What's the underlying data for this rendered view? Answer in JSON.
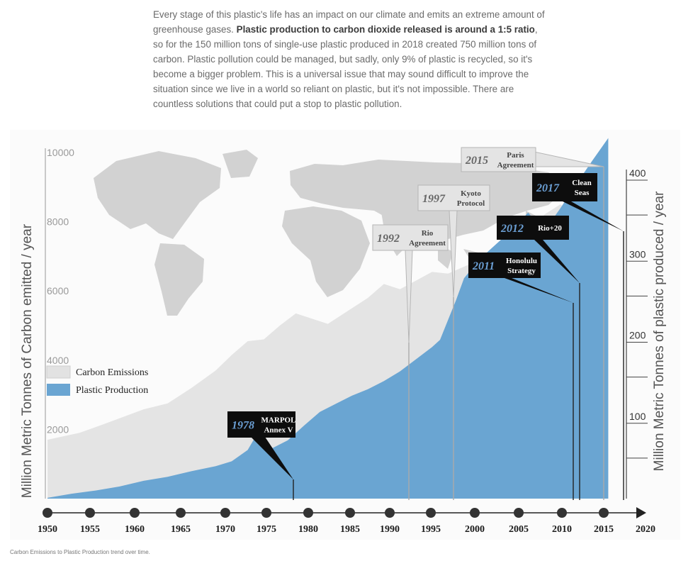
{
  "intro": {
    "p1": "Every stage of this plastic's life has an impact on our climate and emits an extreme amount of greenhouse gases. ",
    "bold": "Plastic production to carbon dioxide released is around a 1:5 ratio",
    "p2": ", so for the 150 million tons of single-use plastic produced in 2018 created 750 million tons of carbon. Plastic pollution could be managed, but sadly, only 9% of plastic is recycled, so it's become a bigger problem. This is a universal issue that may sound difficult to improve the situation since we live in a world so reliant on plastic, but it's not impossible. There are countless solutions that could put a stop to plastic pollution."
  },
  "caption": "Carbon Emissions to Plastic Production trend over time.",
  "colors": {
    "carbon": "#e2e2e2",
    "plastic": "#6aa5d2",
    "map": "#d2d2d2",
    "event_dark": "#0d0d0d",
    "event_light": "#e4e4e4",
    "event_year_dark": "#6b9fd4",
    "event_year_light": "#666666"
  },
  "chart_data": {
    "type": "area",
    "background_image": "world-map",
    "ylabel_left": "Million Metric Tonnes of Carbon emitted  / year",
    "ylabel_right": "Million Metric Tonnes of plastic produced / year",
    "left_axis": {
      "min": 0,
      "max": 10000,
      "ticks": [
        2000,
        4000,
        6000,
        8000,
        10000
      ]
    },
    "right_axis": {
      "min": 0,
      "max": 400,
      "ticks": [
        100,
        200,
        300,
        400
      ],
      "minor_ticks": [
        50,
        150,
        250,
        350
      ]
    },
    "x_axis": {
      "min": 1948,
      "max": 2020,
      "ticks": [
        1950,
        1955,
        1960,
        1965,
        1970,
        1975,
        1980,
        1985,
        1990,
        1995,
        2000,
        2005,
        2010,
        2015,
        2020
      ]
    },
    "legend": [
      "Carbon Emissions",
      "Plastic Production"
    ],
    "series": [
      {
        "name": "Carbon Emissions",
        "axis": "left",
        "points": [
          [
            1948,
            1700
          ],
          [
            1952,
            1900
          ],
          [
            1955,
            2150
          ],
          [
            1960,
            2580
          ],
          [
            1963,
            2750
          ],
          [
            1966,
            3200
          ],
          [
            1969,
            3700
          ],
          [
            1971,
            4150
          ],
          [
            1973,
            4550
          ],
          [
            1975,
            4600
          ],
          [
            1977,
            5000
          ],
          [
            1979,
            5350
          ],
          [
            1981,
            5200
          ],
          [
            1983,
            5050
          ],
          [
            1986,
            5500
          ],
          [
            1988,
            5800
          ],
          [
            1990,
            6200
          ],
          [
            1992,
            6050
          ],
          [
            1994,
            6300
          ],
          [
            1996,
            6550
          ],
          [
            1998,
            6500
          ],
          [
            2000,
            6700
          ],
          [
            2002,
            6900
          ],
          [
            2004,
            7300
          ],
          [
            2006,
            7700
          ],
          [
            2008,
            7950
          ],
          [
            2009,
            7850
          ],
          [
            2010,
            8200
          ],
          [
            2012,
            8500
          ],
          [
            2014,
            8200
          ],
          [
            2016,
            8750
          ],
          [
            2018,
            9650
          ]
        ]
      },
      {
        "name": "Plastic Production",
        "axis": "right",
        "points": [
          [
            1948,
            1
          ],
          [
            1951,
            6
          ],
          [
            1954,
            10
          ],
          [
            1957,
            15
          ],
          [
            1960,
            22
          ],
          [
            1963,
            27
          ],
          [
            1966,
            34
          ],
          [
            1969,
            40
          ],
          [
            1971,
            46
          ],
          [
            1973,
            60
          ],
          [
            1974,
            77
          ],
          [
            1976,
            62
          ],
          [
            1978,
            72
          ],
          [
            1980,
            90
          ],
          [
            1982,
            107
          ],
          [
            1984,
            117
          ],
          [
            1986,
            127
          ],
          [
            1988,
            135
          ],
          [
            1990,
            145
          ],
          [
            1992,
            157
          ],
          [
            1994,
            172
          ],
          [
            1996,
            187
          ],
          [
            1997,
            196
          ],
          [
            1999,
            245
          ],
          [
            2000,
            272
          ],
          [
            2002,
            296
          ],
          [
            2004,
            314
          ],
          [
            2006,
            332
          ],
          [
            2008,
            353
          ],
          [
            2010,
            330
          ],
          [
            2012,
            358
          ],
          [
            2014,
            388
          ],
          [
            2016,
            417
          ],
          [
            2018,
            445
          ]
        ]
      }
    ],
    "events": [
      {
        "year": "1978",
        "text": [
          "MARPOL",
          "Annex V"
        ],
        "style": "dark"
      },
      {
        "year": "1992",
        "text": [
          "Rio",
          "Agreement"
        ],
        "style": "light"
      },
      {
        "year": "1997",
        "text": [
          "Kyoto",
          "Protocol"
        ],
        "style": "light"
      },
      {
        "year": "2011",
        "text": [
          "Honolulu",
          "Strategy"
        ],
        "style": "dark"
      },
      {
        "year": "2012",
        "text": [
          "Rio+20"
        ],
        "style": "dark"
      },
      {
        "year": "2015",
        "text": [
          "Paris",
          "Agreement"
        ],
        "style": "light"
      },
      {
        "year": "2017",
        "text": [
          "Clean",
          "Seas"
        ],
        "style": "dark"
      }
    ]
  }
}
